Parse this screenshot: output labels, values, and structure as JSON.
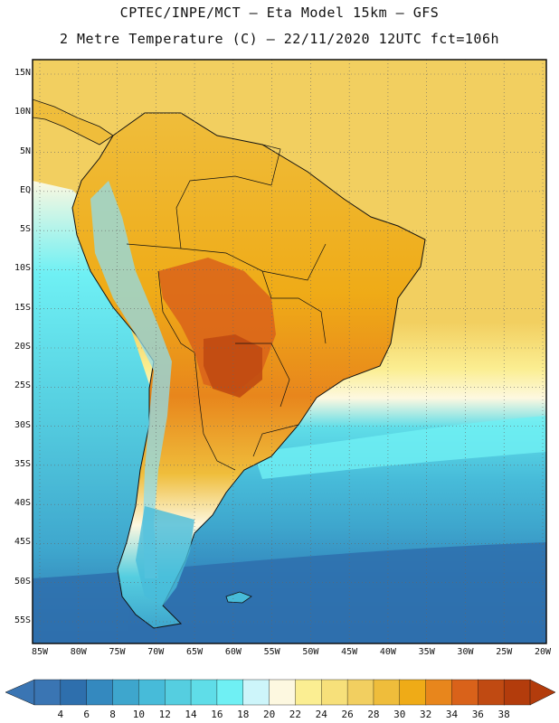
{
  "header": {
    "line1": "CPTEC/INPE/MCT –  Eta Model 15km – GFS",
    "line2": "2 Metre Temperature (C) – 22/11/2020 12UTC fct=106h"
  },
  "lat_labels": [
    "15N",
    "10N",
    "5N",
    "EQ",
    "5S",
    "10S",
    "15S",
    "20S",
    "25S",
    "30S",
    "35S",
    "40S",
    "45S",
    "50S",
    "55S"
  ],
  "lat_values": [
    15,
    10,
    5,
    0,
    -5,
    -10,
    -15,
    -20,
    -25,
    -30,
    -35,
    -40,
    -45,
    -50,
    -55
  ],
  "lon_labels": [
    "85W",
    "80W",
    "75W",
    "70W",
    "65W",
    "60W",
    "55W",
    "50W",
    "45W",
    "40W",
    "35W",
    "30W",
    "25W",
    "20W"
  ],
  "lon_values": [
    -85,
    -80,
    -75,
    -70,
    -65,
    -60,
    -55,
    -50,
    -45,
    -40,
    -35,
    -30,
    -25,
    -20
  ],
  "colorbar": {
    "labels": [
      "4",
      "6",
      "8",
      "10",
      "12",
      "14",
      "16",
      "18",
      "20",
      "22",
      "24",
      "26",
      "28",
      "30",
      "32",
      "34",
      "36",
      "38"
    ],
    "colors": [
      "#3a75b3",
      "#2e6fad",
      "#3489bf",
      "#3ea6cd",
      "#47bbd9",
      "#55cee0",
      "#5fdde8",
      "#6ff0f4",
      "#cdf5fa",
      "#fdf8e0",
      "#fbee92",
      "#f7e07a",
      "#f2cf60",
      "#efbd3b",
      "#efab17",
      "#e8861c",
      "#d9621a",
      "#c04a12",
      "#b33c0c"
    ],
    "left_arrow_color": "#3a75b3",
    "right_arrow_color": "#b33c0c"
  },
  "colors": {
    "ocean_warm": "#f2cf60",
    "ocean_hot": "#efbd3b",
    "ocean_mild": "#fbee92",
    "ocean_cool": "#5fdde8",
    "ocean_cold": "#2e6fad",
    "land": "#efab17",
    "land_hot": "#d9621a",
    "land_very_hot": "#c04a12",
    "andes": "#8fdcee",
    "patagonia": "#47bbd9"
  }
}
